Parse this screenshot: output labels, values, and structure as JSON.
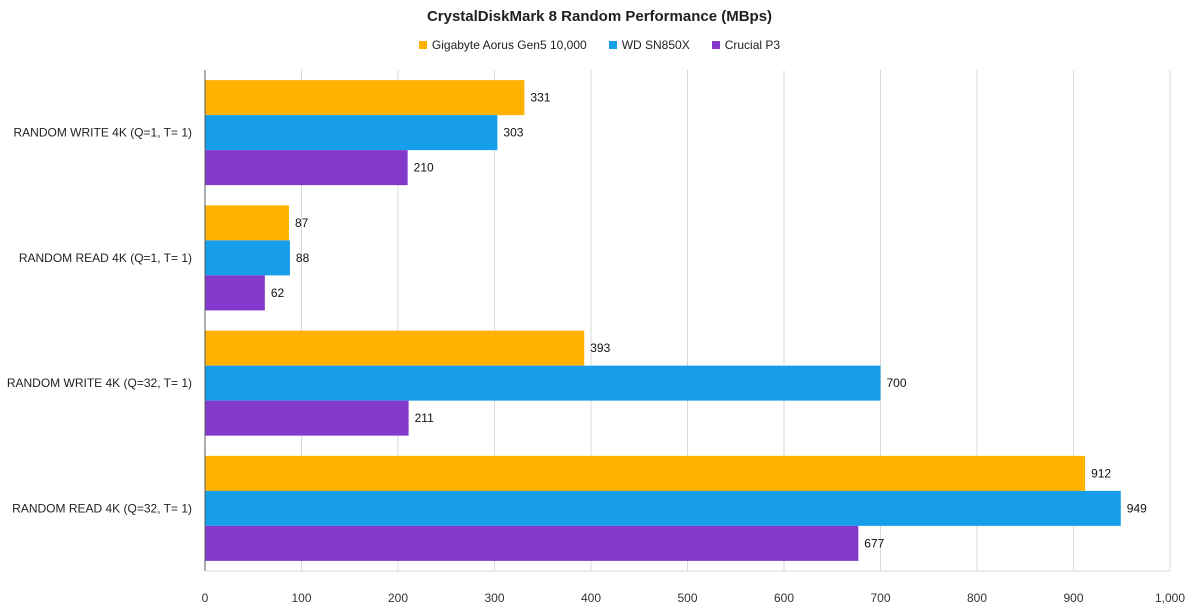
{
  "chart_data": {
    "type": "bar",
    "orientation": "horizontal",
    "title": "CrystalDiskMark 8 Random Performance (MBps)",
    "categories": [
      "RANDOM WRITE 4K (Q=1, T= 1)",
      "RANDOM READ 4K (Q=1, T= 1)",
      "RANDOM WRITE 4K (Q=32, T= 1)",
      "RANDOM READ 4K (Q=32, T= 1)"
    ],
    "series": [
      {
        "name": "Gigabyte Aorus Gen5 10,000",
        "color": "#FFB300",
        "values": [
          331,
          87,
          393,
          912
        ]
      },
      {
        "name": "WD SN850X",
        "color": "#169EEB",
        "values": [
          303,
          88,
          700,
          949
        ]
      },
      {
        "name": "Crucial P3",
        "color": "#8438CC",
        "values": [
          210,
          62,
          211,
          677
        ]
      }
    ],
    "xlim": [
      0,
      1000
    ],
    "xticks": [
      0,
      100,
      200,
      300,
      400,
      500,
      600,
      700,
      800,
      900,
      1000
    ],
    "xtick_labels": [
      "0",
      "100",
      "200",
      "300",
      "400",
      "500",
      "600",
      "700",
      "800",
      "900",
      "1,000"
    ],
    "grid": true,
    "legend_position": "top",
    "data_labels": true
  }
}
